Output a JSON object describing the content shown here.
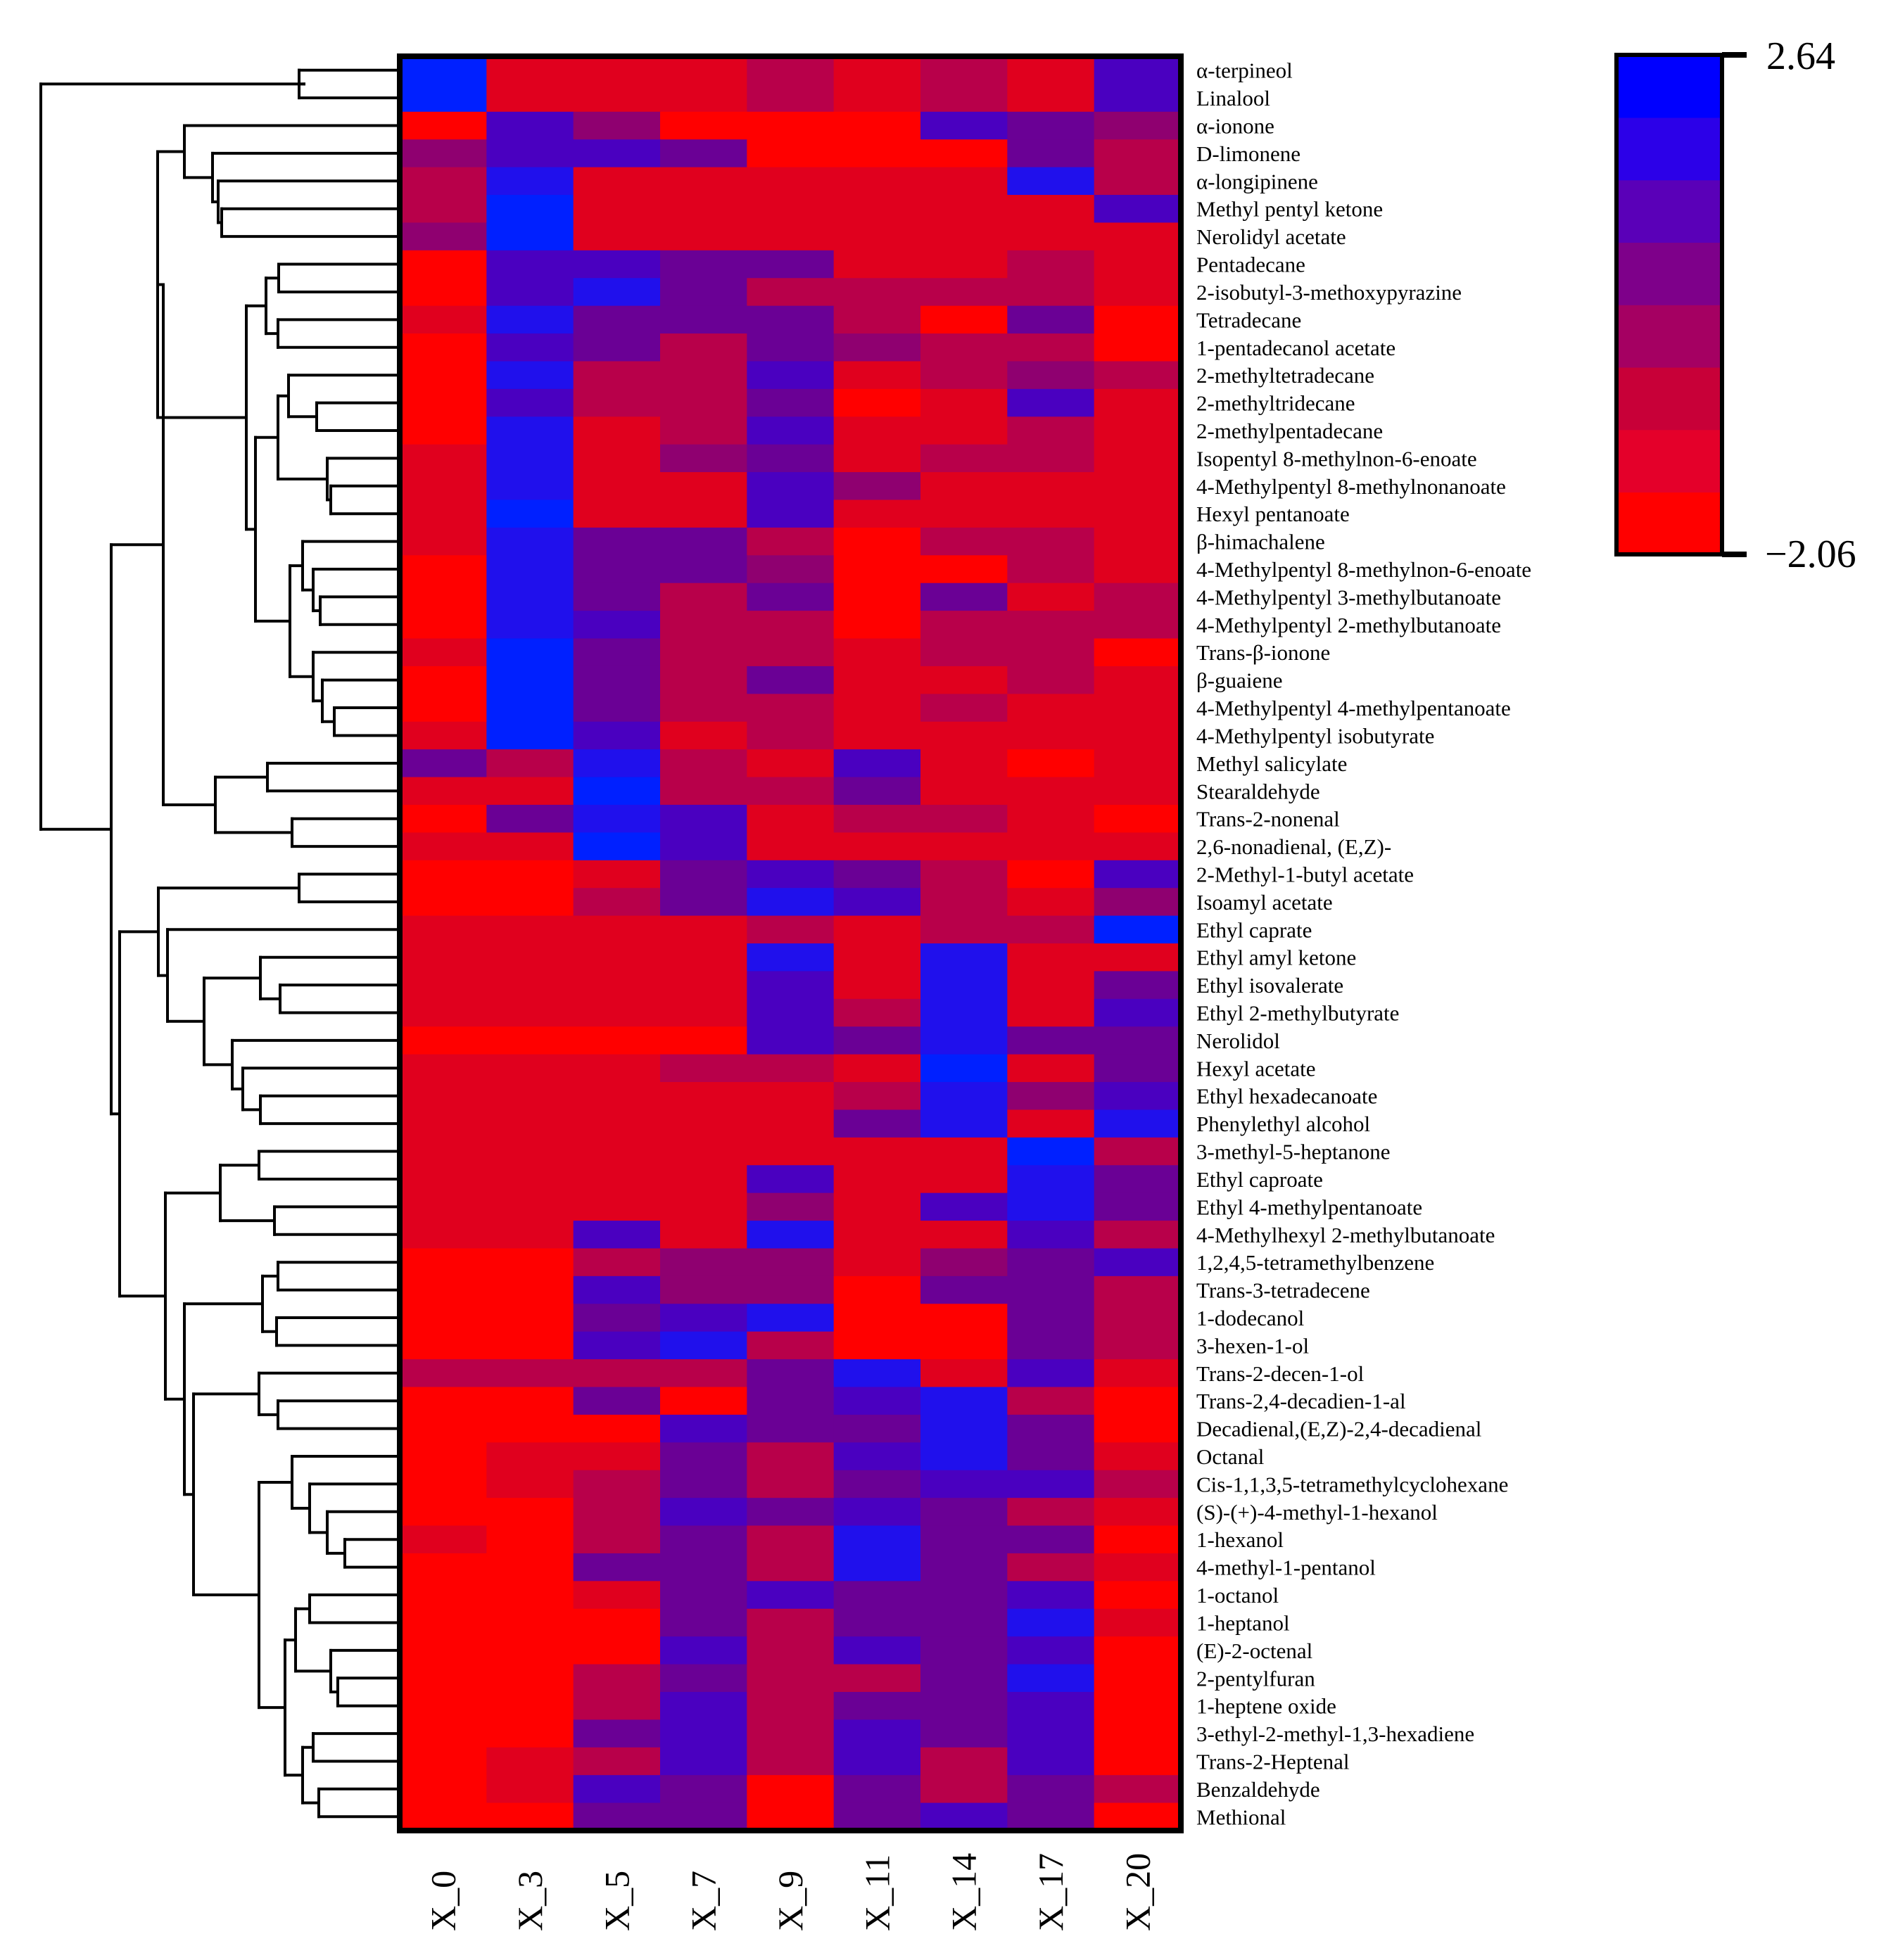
{
  "chart_data": {
    "type": "heatmap",
    "title": "",
    "columns": [
      "X_0",
      "X_3",
      "X_5",
      "X_7",
      "X_9",
      "X_11",
      "X_14",
      "X_17",
      "X_20"
    ],
    "rows": [
      "α-terpineol",
      "Linalool",
      "α-ionone",
      "D-limonene",
      "α-longipinene",
      "Methyl pentyl ketone",
      "Nerolidyl acetate",
      "Pentadecane",
      "2-isobutyl-3-methoxypyrazine",
      "Tetradecane",
      "1-pentadecanol acetate",
      "2-methyltetradecane",
      "2-methyltridecane",
      "2-methylpentadecane",
      "Isopentyl 8-methylnon-6-enoate",
      "4-Methylpentyl 8-methylnonanoate",
      "Hexyl pentanoate",
      "β-himachalene",
      "4-Methylpentyl 8-methylnon-6-enoate",
      "4-Methylpentyl 3-methylbutanoate",
      "4-Methylpentyl 2-methylbutanoate",
      "Trans-β-ionone",
      "β-guaiene",
      "4-Methylpentyl 4-methylpentanoate",
      "4-Methylpentyl isobutyrate",
      "Methyl salicylate",
      "Stearaldehyde",
      "Trans-2-nonenal",
      "2,6-nonadienal, (E,Z)-",
      "2-Methyl-1-butyl acetate",
      "Isoamyl acetate",
      "Ethyl caprate",
      "Ethyl amyl ketone",
      "Ethyl isovalerate",
      "Ethyl 2-methylbutyrate",
      "Nerolidol",
      "Hexyl acetate",
      "Ethyl hexadecanoate",
      "Phenylethyl alcohol",
      "3-methyl-5-heptanone",
      "Ethyl caproate",
      "Ethyl 4-methylpentanoate",
      "4-Methylhexyl 2-methylbutanoate",
      "1,2,4,5-tetramethylbenzene",
      "Trans-3-tetradecene",
      "1-dodecanol",
      "3-hexen-1-ol",
      "Trans-2-decen-1-ol",
      "Trans-2,4-decadien-1-al",
      "Decadienal,(E,Z)-2,4-decadienal",
      "Octanal",
      "Cis-1,1,3,5-tetramethylcyclohexane",
      "(S)-(+)-4-methyl-1-hexanol",
      "1-hexanol",
      "4-methyl-1-pentanol",
      "1-octanol",
      "1-heptanol",
      "(E)-2-octenal",
      "2-pentylfuran",
      "1-heptene oxide",
      "3-ethyl-2-methyl-1,3-hexadiene",
      "Trans-2-Heptenal",
      "Benzaldehyde",
      "Methional"
    ],
    "values": [
      [
        7,
        1,
        1,
        1,
        2,
        1,
        2,
        1,
        5
      ],
      [
        7,
        1,
        1,
        1,
        2,
        1,
        2,
        1,
        5
      ],
      [
        0,
        5,
        3,
        0,
        0,
        0,
        5,
        4,
        3
      ],
      [
        3,
        5,
        5,
        4,
        0,
        0,
        0,
        4,
        2
      ],
      [
        2,
        6,
        1,
        1,
        1,
        1,
        1,
        6,
        2
      ],
      [
        2,
        7,
        1,
        1,
        1,
        1,
        1,
        1,
        5
      ],
      [
        3,
        7,
        1,
        1,
        1,
        1,
        1,
        1,
        1
      ],
      [
        0,
        5,
        5,
        4,
        4,
        1,
        1,
        2,
        1
      ],
      [
        0,
        5,
        6,
        4,
        2,
        2,
        2,
        2,
        1
      ],
      [
        1,
        6,
        4,
        4,
        4,
        2,
        0,
        4,
        0
      ],
      [
        0,
        5,
        4,
        2,
        4,
        3,
        2,
        2,
        0
      ],
      [
        0,
        6,
        2,
        2,
        5,
        1,
        2,
        3,
        2
      ],
      [
        0,
        5,
        2,
        2,
        4,
        0,
        1,
        5,
        1
      ],
      [
        0,
        6,
        1,
        2,
        5,
        1,
        1,
        2,
        1
      ],
      [
        1,
        6,
        1,
        3,
        4,
        1,
        2,
        2,
        1
      ],
      [
        1,
        6,
        1,
        1,
        5,
        3,
        1,
        1,
        1
      ],
      [
        1,
        7,
        1,
        1,
        5,
        1,
        1,
        1,
        1
      ],
      [
        1,
        6,
        4,
        4,
        2,
        0,
        2,
        2,
        1
      ],
      [
        0,
        6,
        4,
        4,
        3,
        0,
        0,
        2,
        1
      ],
      [
        0,
        6,
        4,
        2,
        4,
        0,
        4,
        1,
        2
      ],
      [
        0,
        6,
        5,
        2,
        2,
        0,
        2,
        2,
        2
      ],
      [
        1,
        7,
        4,
        2,
        2,
        1,
        2,
        2,
        0
      ],
      [
        0,
        7,
        4,
        2,
        4,
        1,
        1,
        2,
        1
      ],
      [
        0,
        7,
        4,
        2,
        2,
        1,
        2,
        1,
        1
      ],
      [
        1,
        7,
        5,
        1,
        2,
        1,
        1,
        1,
        1
      ],
      [
        4,
        2,
        6,
        2,
        1,
        5,
        1,
        0,
        1
      ],
      [
        1,
        1,
        7,
        2,
        2,
        4,
        1,
        1,
        1
      ],
      [
        0,
        4,
        6,
        5,
        1,
        2,
        2,
        1,
        0
      ],
      [
        1,
        1,
        7,
        5,
        1,
        1,
        1,
        1,
        1
      ],
      [
        0,
        0,
        1,
        4,
        5,
        4,
        2,
        0,
        5
      ],
      [
        0,
        0,
        2,
        4,
        6,
        5,
        2,
        1,
        3
      ],
      [
        1,
        1,
        1,
        1,
        2,
        1,
        2,
        2,
        7
      ],
      [
        1,
        1,
        1,
        1,
        6,
        1,
        6,
        1,
        1
      ],
      [
        1,
        1,
        1,
        1,
        5,
        1,
        6,
        1,
        4
      ],
      [
        1,
        1,
        1,
        1,
        5,
        2,
        6,
        1,
        5
      ],
      [
        0,
        0,
        0,
        0,
        5,
        4,
        6,
        4,
        4
      ],
      [
        1,
        1,
        1,
        2,
        2,
        1,
        7,
        1,
        4
      ],
      [
        1,
        1,
        1,
        1,
        1,
        2,
        6,
        3,
        5
      ],
      [
        1,
        1,
        1,
        1,
        1,
        4,
        6,
        1,
        6
      ],
      [
        1,
        1,
        1,
        1,
        1,
        1,
        1,
        7,
        2
      ],
      [
        1,
        1,
        1,
        1,
        5,
        1,
        1,
        6,
        4
      ],
      [
        1,
        1,
        1,
        1,
        3,
        1,
        5,
        6,
        4
      ],
      [
        1,
        1,
        5,
        1,
        6,
        1,
        1,
        5,
        2
      ],
      [
        0,
        0,
        2,
        3,
        3,
        1,
        3,
        4,
        5
      ],
      [
        0,
        0,
        5,
        3,
        3,
        0,
        4,
        4,
        2
      ],
      [
        0,
        0,
        4,
        5,
        6,
        0,
        0,
        4,
        2
      ],
      [
        0,
        0,
        5,
        6,
        2,
        0,
        0,
        4,
        2
      ],
      [
        2,
        2,
        2,
        2,
        4,
        6,
        1,
        5,
        1
      ],
      [
        0,
        0,
        4,
        0,
        4,
        5,
        6,
        2,
        0
      ],
      [
        0,
        0,
        0,
        5,
        4,
        4,
        6,
        4,
        0
      ],
      [
        0,
        1,
        1,
        4,
        2,
        5,
        6,
        4,
        1
      ],
      [
        0,
        1,
        2,
        4,
        2,
        4,
        5,
        5,
        2
      ],
      [
        0,
        0,
        2,
        5,
        4,
        5,
        4,
        2,
        1
      ],
      [
        1,
        0,
        2,
        4,
        2,
        6,
        4,
        4,
        0
      ],
      [
        0,
        0,
        4,
        4,
        2,
        6,
        4,
        2,
        1
      ],
      [
        0,
        0,
        1,
        4,
        5,
        4,
        4,
        5,
        0
      ],
      [
        0,
        0,
        0,
        4,
        2,
        4,
        4,
        6,
        1
      ],
      [
        0,
        0,
        0,
        5,
        2,
        5,
        4,
        5,
        0
      ],
      [
        0,
        0,
        2,
        4,
        2,
        2,
        4,
        6,
        0
      ],
      [
        0,
        0,
        2,
        5,
        2,
        4,
        4,
        5,
        0
      ],
      [
        0,
        0,
        4,
        5,
        2,
        5,
        4,
        5,
        0
      ],
      [
        0,
        1,
        2,
        5,
        2,
        5,
        2,
        5,
        0
      ],
      [
        0,
        1,
        5,
        4,
        0,
        4,
        2,
        4,
        2
      ],
      [
        0,
        0,
        4,
        4,
        0,
        4,
        5,
        4,
        0
      ]
    ],
    "value_range": [
      -2.06,
      2.64
    ],
    "colorbar": {
      "max_label": "2.64",
      "min_label": "−2.06",
      "colors": [
        "#ff0000",
        "#e4002a",
        "#c80038",
        "#a50062",
        "#7e008a",
        "#5a00b8",
        "#2c00e8",
        "#0000ff"
      ]
    },
    "cell_colors": [
      "#ff0000",
      "#e0001e",
      "#b8004a",
      "#8f0070",
      "#6a0095",
      "#4a00c0",
      "#2010ec",
      "#0020ff"
    ],
    "dendrogram": "hierarchical clustering of compounds (left)"
  }
}
